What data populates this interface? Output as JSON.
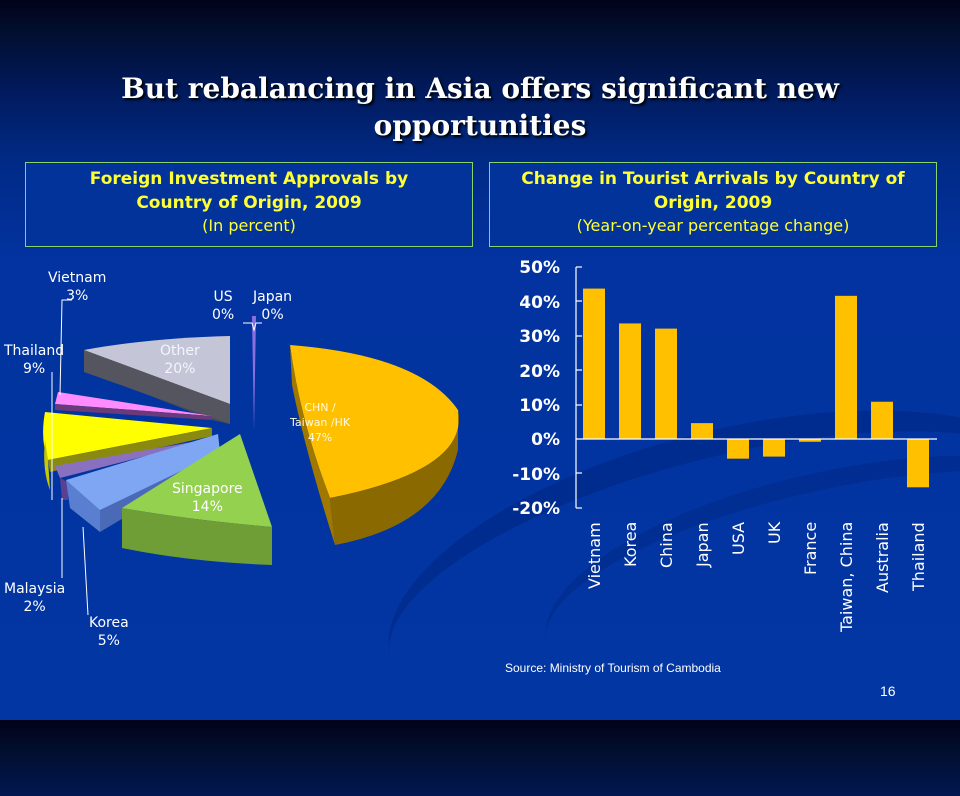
{
  "slide": {
    "title_line1": "But rebalancing in Asia offers significant new",
    "title_line2": "opportunities",
    "page_number": "16",
    "colors": {
      "background": "#0236a2",
      "title_text": "#ffffff",
      "box_heading": "#ffff33",
      "box_border": "#8cd26a",
      "bar": "#ffc000"
    }
  },
  "left_chart": {
    "heading_line1": "Foreign Investment Approvals by",
    "heading_line2": "Country of Origin, 2009",
    "subheading": "(In percent)",
    "labels": {
      "vietnam_name": "Vietnam",
      "vietnam_value": "3%",
      "us_name": "US",
      "us_value": "0%",
      "japan_name": "Japan",
      "japan_value": "0%",
      "thailand_name": "Thailand",
      "thailand_value": "9%",
      "other_name": "Other",
      "other_value": "20%",
      "chn_line1": "CHN /",
      "chn_line2": "Taiwan /HK",
      "chn_value": "47%",
      "singapore_name": "Singapore",
      "singapore_value": "14%",
      "malaysia_name": "Malaysia",
      "malaysia_value": "2%",
      "korea_name": "Korea",
      "korea_value": "5%"
    }
  },
  "right_chart": {
    "heading_line1": "Change in Tourist Arrivals by Country of",
    "heading_line2": "Origin, 2009",
    "subheading": "(Year-on-year percentage change)",
    "source": "Source: Ministry of Tourism of Cambodia",
    "yticks": [
      "50%",
      "40%",
      "30%",
      "20%",
      "10%",
      "0%",
      "-10%",
      "-20%"
    ],
    "categories": [
      "Vietnam",
      "Korea",
      "China",
      "Japan",
      "USA",
      "UK",
      "France",
      "Taiwan, China",
      "Australia",
      "Thailand"
    ]
  },
  "chart_data": [
    {
      "type": "pie",
      "title": "Foreign Investment Approvals by Country of Origin, 2009",
      "subtitle": "(In percent)",
      "categories": [
        "CHN / Taiwan /HK",
        "Singapore",
        "Korea",
        "Malaysia",
        "Thailand",
        "Vietnam",
        "Other",
        "US",
        "Japan"
      ],
      "values": [
        47,
        14,
        5,
        2,
        9,
        3,
        20,
        0,
        0
      ],
      "colors": [
        "#ffc000",
        "#92d050",
        "#7aa7f0",
        "#8064a2",
        "#ffff00",
        "#ff88ff",
        "#c0c0d0",
        "#8060c0",
        "#6060c0"
      ],
      "style": "3d exploded pie",
      "legend": "none (data labels)"
    },
    {
      "type": "bar",
      "title": "Change in Tourist Arrivals by Country of Origin, 2009",
      "subtitle": "(Year-on-year percentage change)",
      "categories": [
        "Vietnam",
        "Korea",
        "China",
        "Japan",
        "USA",
        "UK",
        "France",
        "Taiwan, China",
        "Australia",
        "Thailand"
      ],
      "values": [
        43.6,
        33.5,
        32.0,
        4.6,
        -5.7,
        -5.1,
        -0.8,
        41.5,
        10.8,
        -14.0
      ],
      "unit": "%",
      "xlabel": "",
      "ylabel": "",
      "ylim": [
        -20,
        50
      ],
      "yticks": [
        -20,
        -10,
        0,
        10,
        20,
        30,
        40,
        50
      ],
      "grid": false,
      "legend": "none",
      "source": "Source: Ministry of Tourism of Cambodia"
    }
  ]
}
